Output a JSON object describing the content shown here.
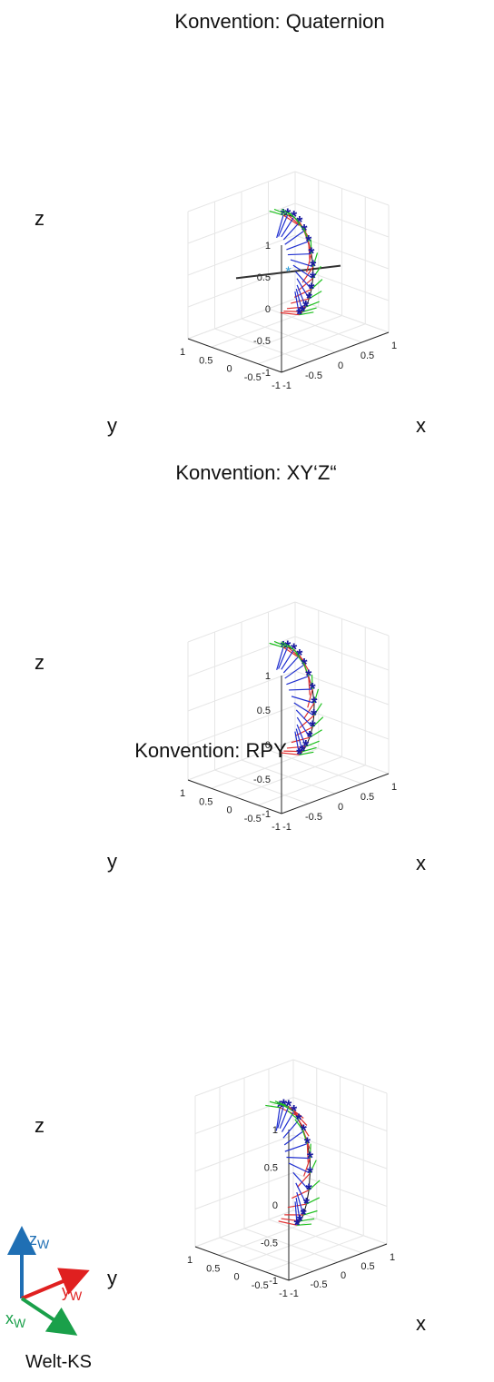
{
  "chart_data": [
    {
      "type": "scatter",
      "title": "Konvention: Quaternion",
      "xlabel": "x",
      "ylabel": "y",
      "zlabel": "z",
      "xlim": [
        -1,
        1
      ],
      "ylim": [
        -1,
        1
      ],
      "zlim": [
        -1,
        1
      ],
      "xticks": [
        "-1",
        "-0.5",
        "0",
        "0.5",
        "1"
      ],
      "yticks": [
        "-1",
        "-0.5",
        "0",
        "0.5",
        "1"
      ],
      "zticks": [
        "1",
        "0.5",
        "0",
        "-0.5",
        "-1"
      ],
      "grid": true,
      "rotation_axis": {
        "from": [
          -0.8,
          0.2,
          0.1
        ],
        "to": [
          0.8,
          -0.2,
          -0.1
        ],
        "center": [
          0,
          0,
          0
        ]
      },
      "frames": [
        {
          "x": 0.3,
          "y": 0.45,
          "z": 0.68
        },
        {
          "x": 0.38,
          "y": 0.45,
          "z": 0.66
        },
        {
          "x": 0.48,
          "y": 0.43,
          "z": 0.6
        },
        {
          "x": 0.56,
          "y": 0.4,
          "z": 0.5
        },
        {
          "x": 0.61,
          "y": 0.36,
          "z": 0.36
        },
        {
          "x": 0.64,
          "y": 0.3,
          "z": 0.2
        },
        {
          "x": 0.64,
          "y": 0.24,
          "z": 0.02
        },
        {
          "x": 0.62,
          "y": 0.18,
          "z": -0.16
        },
        {
          "x": 0.58,
          "y": 0.14,
          "z": -0.32
        },
        {
          "x": 0.52,
          "y": 0.1,
          "z": -0.46
        },
        {
          "x": 0.45,
          "y": 0.07,
          "z": -0.58
        },
        {
          "x": 0.37,
          "y": 0.05,
          "z": -0.68
        },
        {
          "x": 0.3,
          "y": 0.04,
          "z": -0.73
        },
        {
          "x": 0.24,
          "y": 0.04,
          "z": -0.76
        }
      ]
    },
    {
      "type": "scatter",
      "title": "Konvention: XY‘Z“",
      "xlabel": "x",
      "ylabel": "y",
      "zlabel": "z",
      "xlim": [
        -1,
        1
      ],
      "ylim": [
        -1,
        1
      ],
      "zlim": [
        -1,
        1
      ],
      "xticks": [
        "-1",
        "-0.5",
        "0",
        "0.5",
        "1"
      ],
      "yticks": [
        "-1",
        "-0.5",
        "0",
        "0.5",
        "1"
      ],
      "zticks": [
        "1",
        "0.5",
        "0",
        "-0.5",
        "-1"
      ],
      "grid": true,
      "frames": [
        {
          "x": 0.3,
          "y": 0.45,
          "z": 0.68
        },
        {
          "x": 0.38,
          "y": 0.45,
          "z": 0.66
        },
        {
          "x": 0.48,
          "y": 0.43,
          "z": 0.6
        },
        {
          "x": 0.56,
          "y": 0.4,
          "z": 0.5
        },
        {
          "x": 0.61,
          "y": 0.36,
          "z": 0.36
        },
        {
          "x": 0.64,
          "y": 0.3,
          "z": 0.2
        },
        {
          "x": 0.66,
          "y": 0.24,
          "z": 0.02
        },
        {
          "x": 0.64,
          "y": 0.18,
          "z": -0.16
        },
        {
          "x": 0.6,
          "y": 0.14,
          "z": -0.32
        },
        {
          "x": 0.54,
          "y": 0.1,
          "z": -0.46
        },
        {
          "x": 0.46,
          "y": 0.07,
          "z": -0.58
        },
        {
          "x": 0.37,
          "y": 0.05,
          "z": -0.68
        },
        {
          "x": 0.3,
          "y": 0.04,
          "z": -0.73
        },
        {
          "x": 0.24,
          "y": 0.04,
          "z": -0.76
        }
      ]
    },
    {
      "type": "scatter",
      "title": "Konvention: RPY",
      "xlabel": "x",
      "ylabel": "y",
      "zlabel": "z",
      "xlim": [
        -1,
        1
      ],
      "ylim": [
        -1,
        1
      ],
      "zlim": [
        -1,
        1
      ],
      "xticks": [
        "-1",
        "-0.5",
        "0",
        "0.5",
        "1"
      ],
      "yticks": [
        "-1",
        "-0.5",
        "0",
        "0.5",
        "1"
      ],
      "zticks": [
        "1",
        "0.5",
        "0",
        "-0.5",
        "-1"
      ],
      "grid": true,
      "frames": [
        {
          "x": 0.2,
          "y": 0.45,
          "z": 0.68
        },
        {
          "x": 0.28,
          "y": 0.45,
          "z": 0.69
        },
        {
          "x": 0.36,
          "y": 0.43,
          "z": 0.66
        },
        {
          "x": 0.44,
          "y": 0.4,
          "z": 0.58
        },
        {
          "x": 0.5,
          "y": 0.36,
          "z": 0.46
        },
        {
          "x": 0.54,
          "y": 0.3,
          "z": 0.32
        },
        {
          "x": 0.56,
          "y": 0.24,
          "z": 0.16
        },
        {
          "x": 0.56,
          "y": 0.18,
          "z": -0.02
        },
        {
          "x": 0.52,
          "y": 0.14,
          "z": -0.2
        },
        {
          "x": 0.46,
          "y": 0.1,
          "z": -0.4
        },
        {
          "x": 0.38,
          "y": 0.07,
          "z": -0.56
        },
        {
          "x": 0.3,
          "y": 0.05,
          "z": -0.68
        },
        {
          "x": 0.22,
          "y": 0.04,
          "z": -0.74
        },
        {
          "x": 0.16,
          "y": 0.04,
          "z": -0.78
        }
      ]
    }
  ],
  "legend": {
    "title": "Welt-KS",
    "axes": [
      {
        "label": "z",
        "sub": "W",
        "color": "#1f6fb4"
      },
      {
        "label": "y",
        "sub": "W",
        "color": "#e02020"
      },
      {
        "label": "x",
        "sub": "W",
        "color": "#1aa04a"
      }
    ]
  },
  "colors": {
    "frame_x": "#e03030",
    "frame_y": "#20c020",
    "frame_z": "#2030d0",
    "marker": "#1a1aa0",
    "path": "#111111",
    "rotation_axis": "#333333",
    "grid": "#e6e6e6"
  }
}
